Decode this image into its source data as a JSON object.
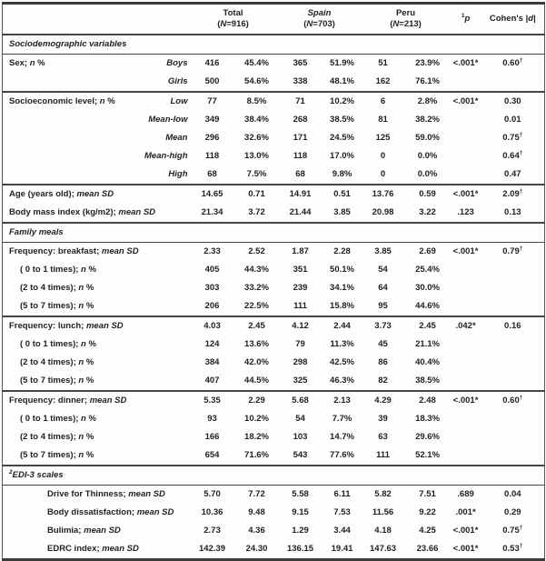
{
  "table": {
    "header": {
      "groups": [
        {
          "name": "Total",
          "n": "(*N*=916)"
        },
        {
          "name": "*Spain*",
          "n": "(*N*=703)"
        },
        {
          "name": "Peru",
          "n": "(*N*=213)"
        }
      ],
      "p_label": "^1^*p*",
      "d_label": "Cohen's |*d*|"
    },
    "rows": [
      {
        "type": "section",
        "label": "Sociodemographic variables"
      },
      {
        "type": "data",
        "label": "Sex; *n* %",
        "sub": "Boys",
        "values": [
          "416",
          "45.4%",
          "365",
          "51.9%",
          "51",
          "23.9%"
        ],
        "p": "<.001*",
        "d": "0.60^†^"
      },
      {
        "type": "data",
        "label": "",
        "sub": "Girls",
        "values": [
          "500",
          "54.6%",
          "338",
          "48.1%",
          "162",
          "76.1%"
        ],
        "p": "",
        "d": ""
      },
      {
        "type": "data",
        "sep": true,
        "label": "Socioeconomic level; *n* %",
        "sub": "Low",
        "values": [
          "77",
          "8.5%",
          "71",
          "10.2%",
          "6",
          "2.8%"
        ],
        "p": "<.001*",
        "d": "0.30"
      },
      {
        "type": "data",
        "label": "",
        "sub": "Mean-low",
        "values": [
          "349",
          "38.4%",
          "268",
          "38.5%",
          "81",
          "38.2%"
        ],
        "p": "",
        "d": "0.01"
      },
      {
        "type": "data",
        "label": "",
        "sub": "Mean",
        "values": [
          "296",
          "32.6%",
          "171",
          "24.5%",
          "125",
          "59.0%"
        ],
        "p": "",
        "d": "0.75^†^"
      },
      {
        "type": "data",
        "label": "",
        "sub": "Mean-high",
        "values": [
          "118",
          "13.0%",
          "118",
          "17.0%",
          "0",
          "0.0%"
        ],
        "p": "",
        "d": "0.64^†^"
      },
      {
        "type": "data",
        "label": "",
        "sub": "High",
        "values": [
          "68",
          "7.5%",
          "68",
          "9.8%",
          "0",
          "0.0%"
        ],
        "p": "",
        "d": "0.47"
      },
      {
        "type": "data",
        "sep": true,
        "label": "Age (years old); *mean SD*",
        "values": [
          "14.65",
          "0.71",
          "14.91",
          "0.51",
          "13.76",
          "0.59"
        ],
        "p": "<.001*",
        "d": "2.09^†^"
      },
      {
        "type": "data",
        "label": "Body mass index (kg/m2); *mean SD*",
        "values": [
          "21.34",
          "3.72",
          "21.44",
          "3.85",
          "20.98",
          "3.22"
        ],
        "p": ".123",
        "d": "0.13"
      },
      {
        "type": "section",
        "label": "Family meals"
      },
      {
        "type": "data",
        "label": "Frequency: breakfast; *mean SD*",
        "values": [
          "2.33",
          "2.52",
          "1.87",
          "2.28",
          "3.85",
          "2.69"
        ],
        "p": "<.001*",
        "d": "0.79^†^"
      },
      {
        "type": "data",
        "indent": 1,
        "label": "( 0 to 1 times); *n* %",
        "values": [
          "405",
          "44.3%",
          "351",
          "50.1%",
          "54",
          "25.4%"
        ],
        "p": "",
        "d": ""
      },
      {
        "type": "data",
        "indent": 1,
        "label": "(2 to 4 times); *n* %",
        "values": [
          "303",
          "33.2%",
          "239",
          "34.1%",
          "64",
          "30.0%"
        ],
        "p": "",
        "d": ""
      },
      {
        "type": "data",
        "indent": 1,
        "label": "(5 to 7 times); *n* %",
        "values": [
          "206",
          "22.5%",
          "111",
          "15.8%",
          "95",
          "44.6%"
        ],
        "p": "",
        "d": ""
      },
      {
        "type": "data",
        "sep": true,
        "label": "Frequency: lunch; *mean SD*",
        "values": [
          "4.03",
          "2.45",
          "4.12",
          "2.44",
          "3.73",
          "2.45"
        ],
        "p": ".042*",
        "d": "0.16"
      },
      {
        "type": "data",
        "indent": 1,
        "label": "( 0 to 1 times); *n* %",
        "values": [
          "124",
          "13.6%",
          "79",
          "11.3%",
          "45",
          "21.1%"
        ],
        "p": "",
        "d": ""
      },
      {
        "type": "data",
        "indent": 1,
        "label": "(2 to 4 times); *n* %",
        "values": [
          "384",
          "42.0%",
          "298",
          "42.5%",
          "86",
          "40.4%"
        ],
        "p": "",
        "d": ""
      },
      {
        "type": "data",
        "indent": 1,
        "label": "(5 to 7 times); *n* %",
        "values": [
          "407",
          "44.5%",
          "325",
          "46.3%",
          "82",
          "38.5%"
        ],
        "p": "",
        "d": ""
      },
      {
        "type": "data",
        "sep": true,
        "label": "Frequency: dinner; *mean SD*",
        "values": [
          "5.35",
          "2.29",
          "5.68",
          "2.13",
          "4.29",
          "2.48"
        ],
        "p": "<.001*",
        "d": "0.60^†^"
      },
      {
        "type": "data",
        "indent": 1,
        "label": "( 0 to 1 times); *n* %",
        "values": [
          "93",
          "10.2%",
          "54",
          "7.7%",
          "39",
          "18.3%"
        ],
        "p": "",
        "d": ""
      },
      {
        "type": "data",
        "indent": 1,
        "label": "(2 to 4 times); *n* %",
        "values": [
          "166",
          "18.2%",
          "103",
          "14.7%",
          "63",
          "29.6%"
        ],
        "p": "",
        "d": ""
      },
      {
        "type": "data",
        "indent": 1,
        "label": "(5 to 7 times); *n* %",
        "values": [
          "654",
          "71.6%",
          "543",
          "77.6%",
          "111",
          "52.1%"
        ],
        "p": "",
        "d": ""
      },
      {
        "type": "section",
        "label": "^2^EDI-3 scales"
      },
      {
        "type": "data",
        "indent": 2,
        "label": "Drive for Thinness; *mean SD*",
        "values": [
          "5.70",
          "7.72",
          "5.58",
          "6.11",
          "5.82",
          "7.51"
        ],
        "p": ".689",
        "d": "0.04"
      },
      {
        "type": "data",
        "indent": 2,
        "label": "Body dissatisfaction; *mean SD*",
        "values": [
          "10.36",
          "9.48",
          "9.15",
          "7.53",
          "11.56",
          "9.22"
        ],
        "p": ".001*",
        "d": "0.29"
      },
      {
        "type": "data",
        "indent": 2,
        "label": "Bulimia; *mean SD*",
        "values": [
          "2.73",
          "4.36",
          "1.29",
          "3.44",
          "4.18",
          "4.25"
        ],
        "p": "<.001*",
        "d": "0.75^†^"
      },
      {
        "type": "data",
        "indent": 2,
        "label": "EDRC index; *mean SD*",
        "values": [
          "142.39",
          "24.30",
          "136.15",
          "19.41",
          "147.63",
          "23.66"
        ],
        "p": "<.001*",
        "d": "0.53^†^"
      }
    ]
  }
}
